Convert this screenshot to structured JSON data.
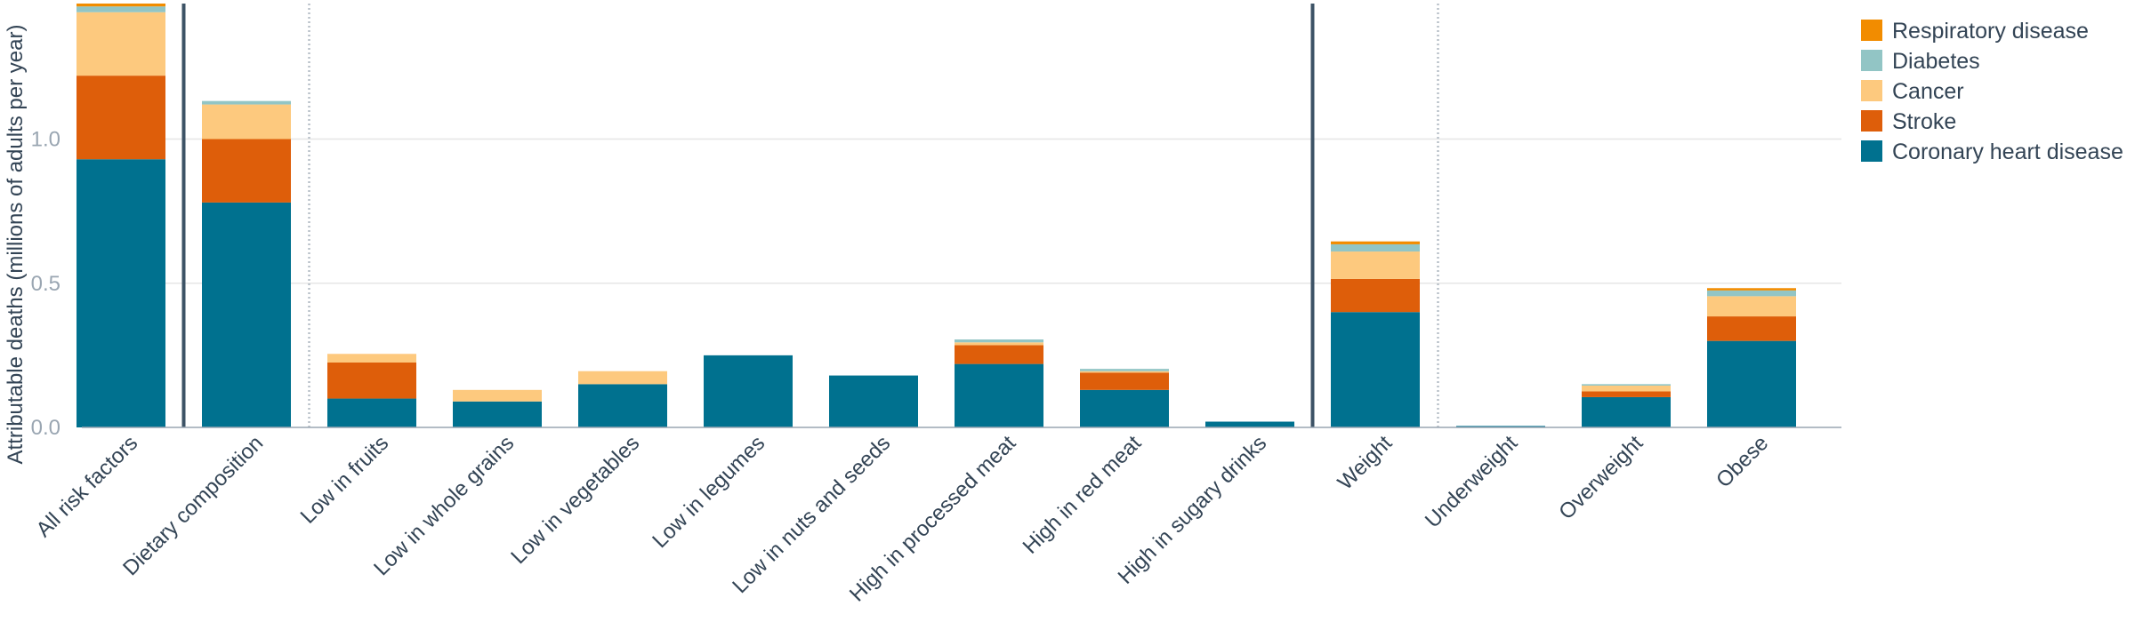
{
  "chart_data": {
    "type": "bar",
    "stacked": true,
    "ylabel": "Attributable deaths (millions of adults per year)",
    "xlabel": "",
    "ylim": [
      0,
      1.47
    ],
    "yticks": [
      0.0,
      0.5,
      1.0
    ],
    "ytick_labels": [
      "0.0",
      "0.5",
      "1.0"
    ],
    "grid": "horizontal",
    "legend_position": "top-right",
    "categories": [
      "All risk factors",
      "Dietary composition",
      "Low in fruits",
      "Low in whole grains",
      "Low in vegetables",
      "Low in legumes",
      "Low in nuts and seeds",
      "High in processed meat",
      "High in red meat",
      "High in sugary drinks",
      "Weight",
      "Underweight",
      "Overweight",
      "Obese"
    ],
    "series": [
      {
        "name": "Coronary heart disease",
        "color": "#00718f",
        "values": [
          0.93,
          0.78,
          0.1,
          0.09,
          0.15,
          0.25,
          0.18,
          0.22,
          0.13,
          0.02,
          0.4,
          0.005,
          0.105,
          0.3
        ]
      },
      {
        "name": "Stroke",
        "color": "#de5e0a",
        "values": [
          0.29,
          0.22,
          0.125,
          0.0,
          0.0,
          0.0,
          0.0,
          0.065,
          0.06,
          0.0,
          0.115,
          0.0,
          0.02,
          0.085
        ]
      },
      {
        "name": "Cancer",
        "color": "#fdc97e",
        "values": [
          0.22,
          0.12,
          0.03,
          0.04,
          0.045,
          0.0,
          0.0,
          0.01,
          0.005,
          0.0,
          0.095,
          0.0,
          0.02,
          0.07
        ]
      },
      {
        "name": "Diabetes",
        "color": "#92c5c5",
        "values": [
          0.02,
          0.012,
          0.0,
          0.0,
          0.0,
          0.0,
          0.0,
          0.01,
          0.008,
          0.0,
          0.025,
          0.0,
          0.005,
          0.02
        ]
      },
      {
        "name": "Respiratory disease",
        "color": "#f28c00",
        "values": [
          0.01,
          0.0,
          0.0,
          0.0,
          0.0,
          0.0,
          0.0,
          0.0,
          0.0,
          0.0,
          0.01,
          0.0,
          0.0,
          0.008
        ]
      }
    ],
    "legend_order": [
      "Respiratory disease",
      "Diabetes",
      "Cancer",
      "Stroke",
      "Coronary heart disease"
    ],
    "separators": [
      {
        "after_category": 0,
        "style": "solid"
      },
      {
        "after_category": 1,
        "style": "dotted"
      },
      {
        "after_category": 9,
        "style": "solid"
      },
      {
        "after_category": 10,
        "style": "dotted"
      }
    ]
  }
}
